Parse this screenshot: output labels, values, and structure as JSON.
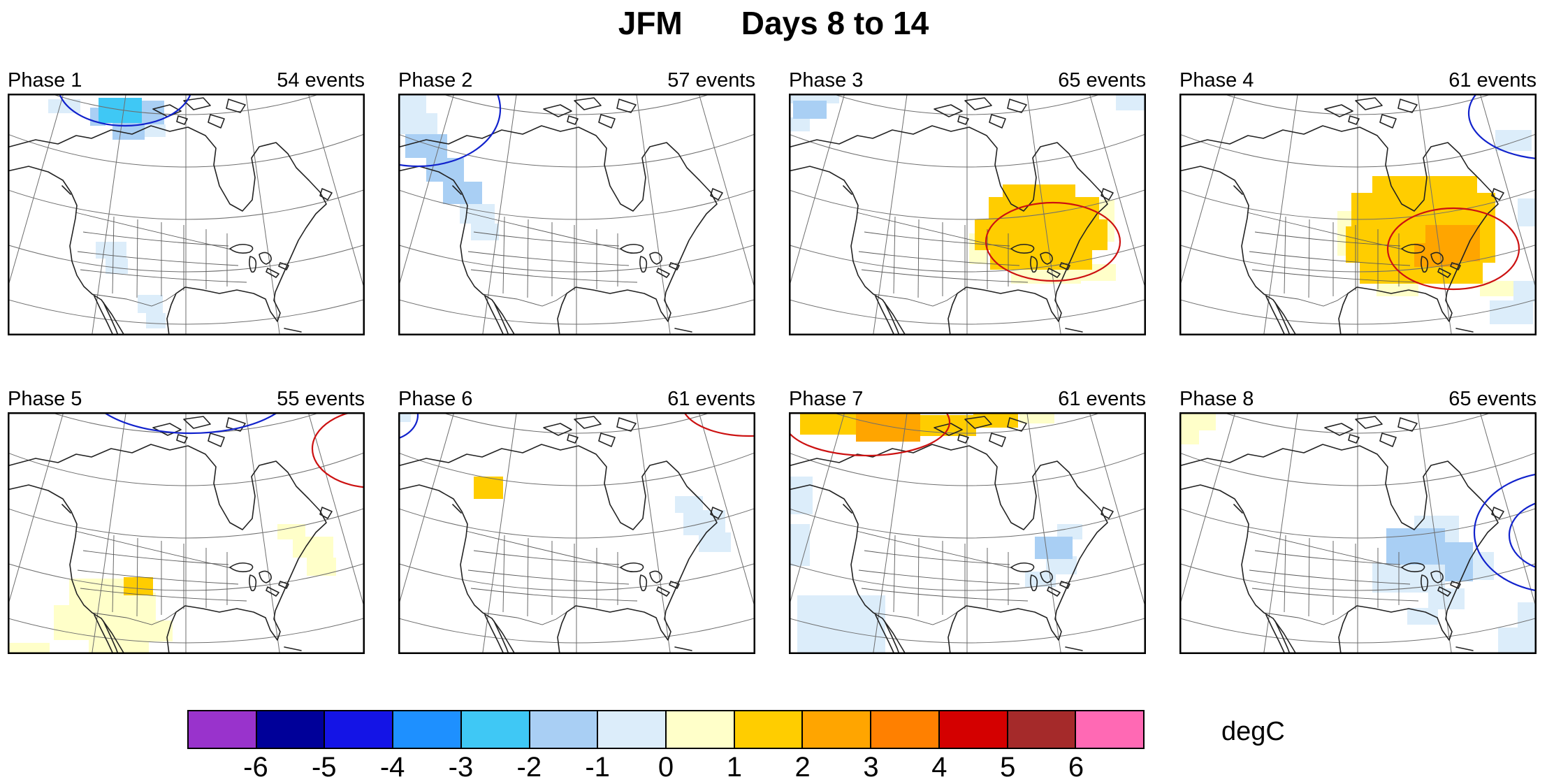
{
  "title": {
    "left": "JFM",
    "right": "Days 8 to 14"
  },
  "colorbar": {
    "label": "degC",
    "tick_labels": [
      "-6",
      "-5",
      "-4",
      "-3",
      "-2",
      "-1",
      "0",
      "1",
      "2",
      "3",
      "4",
      "5",
      "6"
    ],
    "colors": [
      "#9933CC",
      "#000099",
      "#1414E6",
      "#1E90FF",
      "#3FC8F5",
      "#A9CFF4",
      "#DCEDFA",
      "#FFFFC9",
      "#FFCD00",
      "#FFA500",
      "#FF8000",
      "#D40000",
      "#A52A2A",
      "#FF69B4"
    ]
  },
  "chart_data": {
    "type": "heatmap",
    "title": "JFM Days 8 to 14",
    "units": "degC",
    "colorbar_ticks": [
      -6,
      -5,
      -4,
      -3,
      -2,
      -1,
      0,
      1,
      2,
      3,
      4,
      5,
      6
    ],
    "layout": "2 rows x 4 columns of North America composite anomaly maps",
    "value_colors": {
      "-3": "#3FC8F5",
      "-2": "#A9CFF4",
      "-1": "#DCEDFA",
      "1": "#FFFFC9",
      "2": "#FFCD00",
      "3": "#FFA500"
    },
    "contour_colors": {
      "blue": "#1122CC",
      "red": "#CC1111"
    },
    "panels": [
      {
        "label": "Phase 1",
        "events": "54 events",
        "summary": "Cold anomaly (-2 to -3 degC) over the Canadian Arctic; weak cool patches in the southwest US and northern Mexico",
        "patches": [
          [
            130,
            6,
            62,
            36,
            -3
          ],
          [
            118,
            20,
            22,
            26,
            -2
          ],
          [
            188,
            10,
            36,
            34,
            -2
          ],
          [
            150,
            42,
            46,
            24,
            -2
          ],
          [
            196,
            44,
            30,
            18,
            -1
          ],
          [
            58,
            8,
            46,
            20,
            -1
          ],
          [
            126,
            212,
            44,
            24,
            -1
          ],
          [
            140,
            236,
            32,
            22,
            -1
          ],
          [
            186,
            288,
            36,
            26,
            -1
          ],
          [
            198,
            314,
            28,
            22,
            -1
          ]
        ],
        "contours": [
          [
            "blue",
            168,
            -12,
            96,
            58
          ]
        ]
      },
      {
        "label": "Phase 2",
        "events": "57 events",
        "summary": "Cool anomalies (-1 to -2 degC) along the Pacific Northwest coast",
        "patches": [
          [
            0,
            0,
            40,
            28,
            -1
          ],
          [
            0,
            28,
            56,
            30,
            -1
          ],
          [
            10,
            58,
            60,
            34,
            -2
          ],
          [
            40,
            92,
            54,
            34,
            -2
          ],
          [
            64,
            126,
            56,
            32,
            -2
          ],
          [
            88,
            158,
            50,
            28,
            -1
          ],
          [
            104,
            186,
            40,
            24,
            -1
          ]
        ],
        "contours": [
          [
            "blue",
            28,
            22,
            118,
            82
          ]
        ]
      },
      {
        "label": "Phase 3",
        "events": "65 events",
        "summary": "Warm anomaly (1 to 2 degC) over the eastern US and Great Lakes; weak cool patches near the corners",
        "patches": [
          [
            0,
            0,
            72,
            14,
            -1
          ],
          [
            6,
            10,
            48,
            26,
            -2
          ],
          [
            0,
            34,
            30,
            20,
            -1
          ],
          [
            468,
            0,
            43,
            24,
            -1
          ],
          [
            306,
            130,
            104,
            20,
            2
          ],
          [
            286,
            148,
            158,
            34,
            2
          ],
          [
            266,
            180,
            190,
            44,
            2
          ],
          [
            288,
            222,
            146,
            30,
            2
          ],
          [
            258,
            200,
            26,
            44,
            1
          ],
          [
            318,
            250,
            100,
            22,
            1
          ],
          [
            414,
            244,
            54,
            24,
            1
          ],
          [
            436,
            152,
            30,
            60,
            1
          ]
        ],
        "contours": [
          [
            "red",
            378,
            212,
            96,
            56
          ]
        ]
      },
      {
        "label": "Phase 4",
        "events": "61 events",
        "summary": "Strong warm anomaly over the central and eastern US with a 2 to 3 degC core near the mid-Atlantic",
        "patches": [
          [
            276,
            118,
            150,
            26,
            2
          ],
          [
            246,
            142,
            206,
            50,
            2
          ],
          [
            238,
            190,
            214,
            52,
            2
          ],
          [
            258,
            240,
            176,
            32,
            2
          ],
          [
            352,
            188,
            78,
            52,
            3
          ],
          [
            336,
            214,
            64,
            34,
            3
          ],
          [
            226,
            168,
            24,
            64,
            1
          ],
          [
            430,
            268,
            54,
            22,
            1
          ],
          [
            282,
            270,
            60,
            20,
            1
          ],
          [
            452,
            52,
            52,
            30,
            -1
          ],
          [
            444,
            296,
            62,
            34,
            -1
          ],
          [
            478,
            268,
            33,
            30,
            -1
          ],
          [
            484,
            150,
            27,
            40,
            -1
          ]
        ],
        "contours": [
          [
            "red",
            392,
            222,
            94,
            58
          ],
          [
            "blue",
            532,
            28,
            118,
            66
          ]
        ]
      },
      {
        "label": "Phase 5",
        "events": "55 events",
        "summary": "Weak warm anomalies (0 to 2 degC) over the southwest US and Mexico and along the east coast",
        "patches": [
          [
            88,
            238,
            84,
            38,
            1
          ],
          [
            66,
            276,
            116,
            50,
            1
          ],
          [
            116,
            326,
            86,
            20,
            1
          ],
          [
            150,
            258,
            62,
            40,
            1
          ],
          [
            176,
            298,
            60,
            30,
            1
          ],
          [
            166,
            236,
            42,
            26,
            2
          ],
          [
            386,
            160,
            40,
            22,
            1
          ],
          [
            408,
            178,
            58,
            30,
            1
          ],
          [
            428,
            208,
            42,
            26,
            1
          ],
          [
            0,
            330,
            60,
            16,
            1
          ]
        ],
        "contours": [
          [
            "blue",
            262,
            -38,
            150,
            68
          ],
          [
            "red",
            524,
            52,
            88,
            56
          ]
        ]
      },
      {
        "label": "Phase 6",
        "events": "61 events",
        "summary": "Mostly neutral; small warm patch in northwest Canada and weak cool patch off the northeast coast",
        "patches": [
          [
            108,
            92,
            42,
            32,
            2
          ],
          [
            396,
            120,
            40,
            24,
            -1
          ],
          [
            408,
            140,
            60,
            36,
            -1
          ],
          [
            430,
            172,
            46,
            28,
            -1
          ],
          [
            0,
            0,
            18,
            14,
            -1
          ]
        ],
        "contours": [
          [
            "red",
            502,
            -12,
            96,
            46
          ],
          [
            "blue",
            -18,
            4,
            46,
            36
          ]
        ]
      },
      {
        "label": "Phase 7",
        "events": "61 events",
        "summary": "Warm anomalies across the Arctic with a 2 to 3 degC core; weak cool anomalies over the mid-Atlantic and southwest",
        "patches": [
          [
            16,
            0,
            126,
            32,
            2
          ],
          [
            96,
            0,
            92,
            42,
            3
          ],
          [
            184,
            4,
            84,
            30,
            2
          ],
          [
            264,
            0,
            64,
            22,
            2
          ],
          [
            330,
            0,
            50,
            16,
            1
          ],
          [
            0,
            92,
            34,
            54,
            -1
          ],
          [
            352,
            178,
            54,
            32,
            -2
          ],
          [
            368,
            206,
            44,
            26,
            -1
          ],
          [
            338,
            228,
            44,
            22,
            -1
          ],
          [
            384,
            160,
            36,
            22,
            -1
          ],
          [
            12,
            262,
            126,
            84,
            -1
          ],
          [
            0,
            160,
            30,
            60,
            -1
          ]
        ],
        "contours": [
          [
            "red",
            112,
            14,
            118,
            48
          ]
        ]
      },
      {
        "label": "Phase 8",
        "events": "65 events",
        "summary": "Cool anomaly (-1 to -2 degC) over the northeast US with closed cold contours offshore; weak warm patch in the northwest corner",
        "patches": [
          [
            0,
            0,
            52,
            26,
            1
          ],
          [
            0,
            26,
            28,
            20,
            1
          ],
          [
            336,
            148,
            64,
            42,
            -1
          ],
          [
            296,
            166,
            84,
            52,
            -2
          ],
          [
            380,
            186,
            40,
            56,
            -2
          ],
          [
            276,
            216,
            104,
            42,
            -1
          ],
          [
            420,
            200,
            30,
            40,
            -1
          ],
          [
            356,
            252,
            52,
            30,
            -1
          ],
          [
            326,
            280,
            44,
            24,
            -1
          ],
          [
            456,
            308,
            55,
            38,
            -1
          ],
          [
            484,
            272,
            27,
            36,
            -1
          ]
        ],
        "contours": [
          [
            "blue",
            540,
            172,
            118,
            86
          ],
          [
            "blue",
            544,
            176,
            72,
            52
          ]
        ]
      }
    ]
  }
}
